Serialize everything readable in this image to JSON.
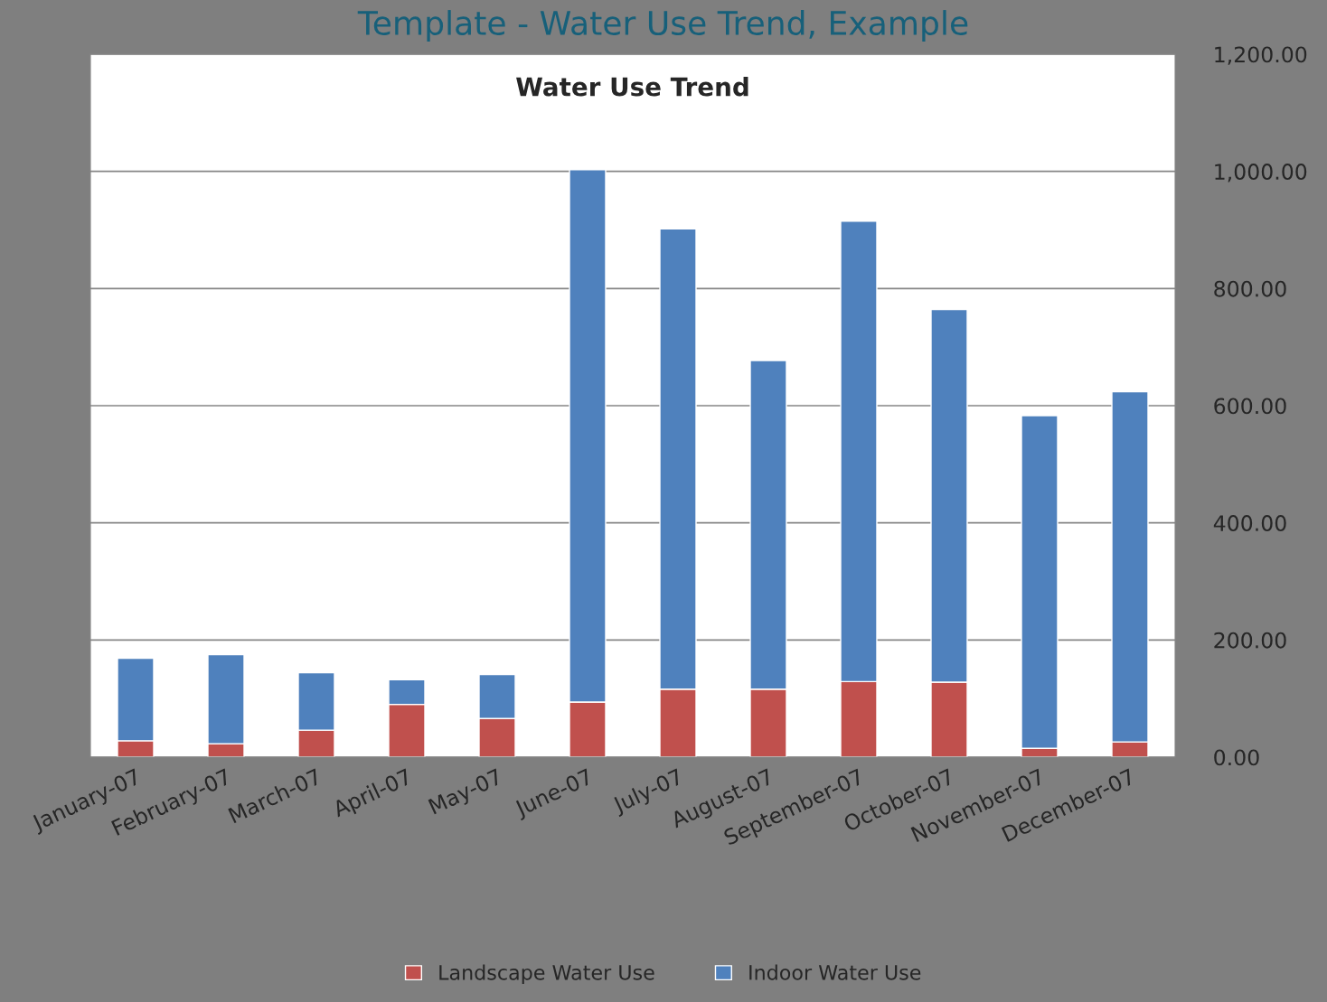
{
  "chart_data": {
    "type": "bar",
    "title": "Water Use Trend",
    "subtitle": "Template - Water Use Trend, Example",
    "categories": [
      "January-07",
      "February-07",
      "March-07",
      "April-07",
      "May-07",
      "June-07",
      "July-07",
      "August-07",
      "September-07",
      "October-07",
      "November-07",
      "December-07"
    ],
    "series": [
      {
        "name": "Landscape Water Use",
        "color": "#c0504d",
        "values": [
          28,
          23,
          46,
          90,
          66,
          94,
          116,
          116,
          129,
          128,
          15,
          26
        ]
      },
      {
        "name": "Indoor Water Use",
        "color": "#4f81bd",
        "values": [
          141,
          152,
          98,
          42,
          75,
          909,
          786,
          561,
          786,
          636,
          568,
          598
        ]
      }
    ],
    "stacked": true,
    "ylim": [
      0,
      1200
    ],
    "yticks": [
      {
        "value": 0,
        "label": "0.00"
      },
      {
        "value": 200,
        "label": "200.00"
      },
      {
        "value": 400,
        "label": "400.00"
      },
      {
        "value": 600,
        "label": "600.00"
      },
      {
        "value": 800,
        "label": "800.00"
      },
      {
        "value": 1000,
        "label": "1,000.00"
      },
      {
        "value": 1200,
        "label": "1,200.00"
      }
    ],
    "grid": "y",
    "legend": "bottom"
  }
}
